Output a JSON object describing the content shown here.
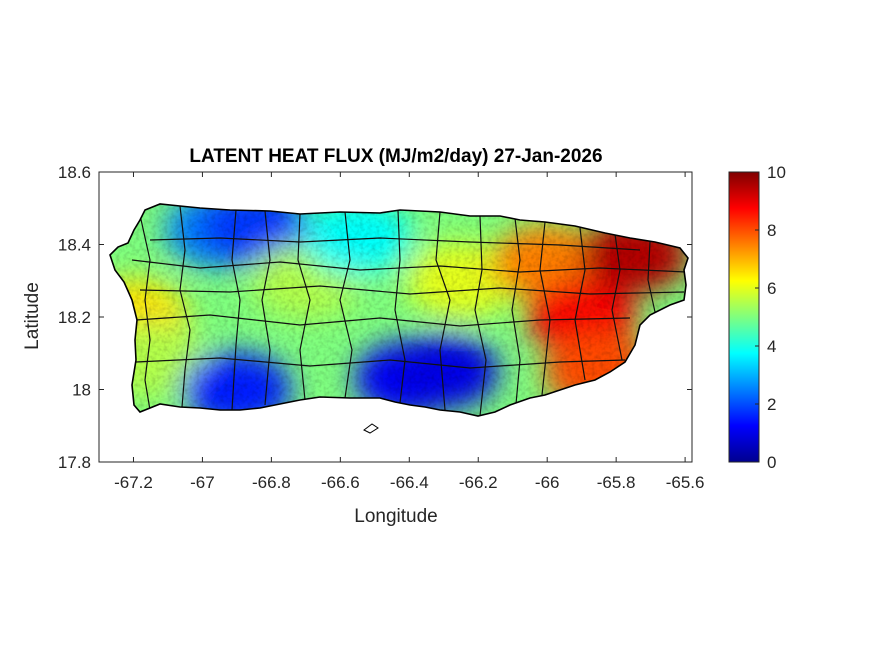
{
  "chart_data": {
    "type": "heatmap",
    "title": "LATENT HEAT FLUX (MJ/m2/day) 27-Jan-2026",
    "xlabel": "Longitude",
    "ylabel": "Latitude",
    "xlim": [
      -67.3,
      -65.58
    ],
    "ylim": [
      17.8,
      18.6
    ],
    "x_ticks": [
      "-67.2",
      "-67",
      "-66.8",
      "-66.6",
      "-66.4",
      "-66.2",
      "-66",
      "-65.8",
      "-65.6"
    ],
    "x_tick_values": [
      -67.2,
      -67.0,
      -66.8,
      -66.6,
      -66.4,
      -66.2,
      -66.0,
      -65.8,
      -65.6
    ],
    "y_ticks": [
      "18.6",
      "18.4",
      "18.2",
      "18",
      "17.8"
    ],
    "y_tick_values": [
      18.6,
      18.4,
      18.2,
      18.0,
      17.8
    ],
    "colorbar": {
      "colormap": "jet",
      "range": [
        0,
        10
      ],
      "ticks": [
        "10",
        "8",
        "6",
        "4",
        "2",
        "0"
      ],
      "tick_values": [
        10,
        8,
        6,
        4,
        2,
        0
      ]
    },
    "grid": false,
    "regions": [
      {
        "lon": -67.2,
        "lat": 18.2,
        "value": 6.5
      },
      {
        "lon": -67.15,
        "lat": 18.08,
        "value": 5.5
      },
      {
        "lon": -66.95,
        "lat": 18.44,
        "value": 2.5
      },
      {
        "lon": -66.85,
        "lat": 18.45,
        "value": 1.8
      },
      {
        "lon": -66.9,
        "lat": 18.0,
        "value": 1.5
      },
      {
        "lon": -66.7,
        "lat": 18.3,
        "value": 5.5
      },
      {
        "lon": -66.55,
        "lat": 18.42,
        "value": 3.8
      },
      {
        "lon": -66.4,
        "lat": 18.03,
        "value": 1.2
      },
      {
        "lon": -66.3,
        "lat": 18.05,
        "value": 1.0
      },
      {
        "lon": -66.25,
        "lat": 18.3,
        "value": 6.0
      },
      {
        "lon": -66.0,
        "lat": 18.35,
        "value": 7.5
      },
      {
        "lon": -65.9,
        "lat": 18.2,
        "value": 8.8
      },
      {
        "lon": -65.75,
        "lat": 18.37,
        "value": 9.5
      },
      {
        "lon": -65.85,
        "lat": 18.05,
        "value": 8.0
      }
    ]
  }
}
